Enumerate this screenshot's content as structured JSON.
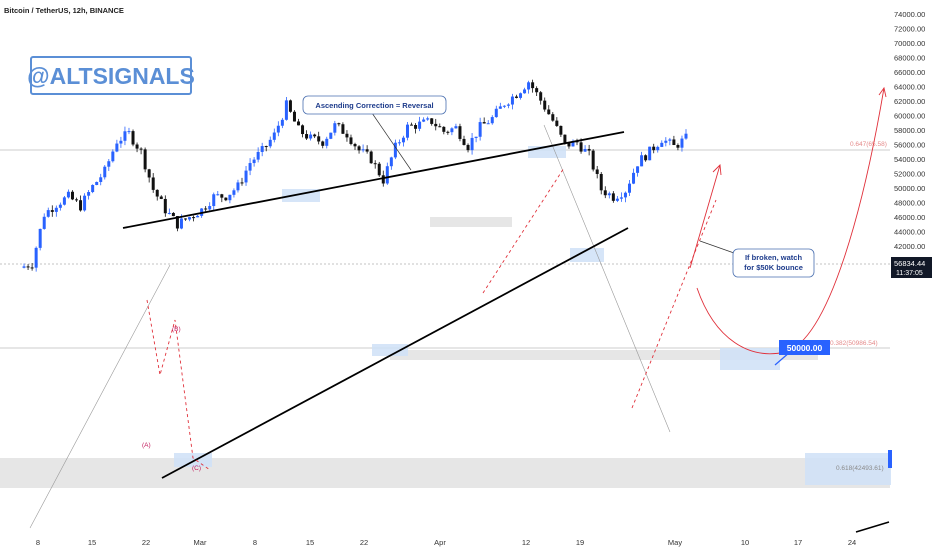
{
  "header": {
    "title": "Bitcoin / TetherUS, 12h, BINANCE"
  },
  "watermark": "@ALTSIGNALS",
  "price_axis": {
    "labels": [
      "74000.00",
      "72000.00",
      "70000.00",
      "68000.00",
      "66000.00",
      "64000.00",
      "62000.00",
      "60000.00",
      "58000.00",
      "56000.00",
      "54000.00",
      "52000.00",
      "50000.00",
      "48000.00",
      "46000.00",
      "44000.00",
      "42000.00",
      "40000.00"
    ],
    "current_price": "56834.44",
    "countdown": "11:37:05"
  },
  "time_axis": {
    "labels": [
      "8",
      "15",
      "22",
      "Mar",
      "8",
      "15",
      "22",
      "Apr",
      "12",
      "19",
      "May",
      "10",
      "17",
      "24"
    ]
  },
  "annotations": {
    "callout_top": "Ascending Correction = Reversal",
    "callout_right_line1": "If broken, watch",
    "callout_right_line2": "for $50K bounce",
    "price_box": "50000.00",
    "fib_top": "0.647(65.58)",
    "fib_mid": "0.382(50986.54)",
    "fib_low": "0.618(42493.61)",
    "wave_a": "(A)",
    "wave_b": "(B)",
    "wave_c": "(C)"
  },
  "colors": {
    "up": "#2962ff",
    "down": "#111111",
    "channel": "#000000",
    "projection": "#e0303a",
    "zone": "#cfe0f7",
    "grey_zone": "#e6e6e6"
  },
  "chart_data": {
    "type": "candlestick",
    "title": "Bitcoin / TetherUS, 12h, BINANCE",
    "y_unit": "USDT",
    "ylim": [
      39000,
      75000
    ],
    "x_ticks": [
      "8",
      "15",
      "22",
      "Mar",
      "8",
      "15",
      "22",
      "Apr",
      "12",
      "19",
      "May",
      "10",
      "17",
      "24"
    ],
    "approx_close_path": [
      39000,
      39600,
      46400,
      47800,
      48800,
      47500,
      50200,
      52300,
      56500,
      57500,
      55000,
      49800,
      47000,
      45000,
      46000,
      47000,
      48800,
      48900,
      50200,
      53500,
      55100,
      57300,
      61400,
      58000,
      56800,
      56400,
      58600,
      57500,
      55200,
      54000,
      51100,
      55600,
      58400,
      58800,
      59200,
      57800,
      58300,
      55800,
      58400,
      59600,
      61700,
      63000,
      64700,
      62100,
      59300,
      55900,
      56300,
      54500,
      49800,
      48800,
      49700,
      53500,
      55000,
      56800,
      55700,
      56834
    ],
    "current_price": 56834.44
  }
}
